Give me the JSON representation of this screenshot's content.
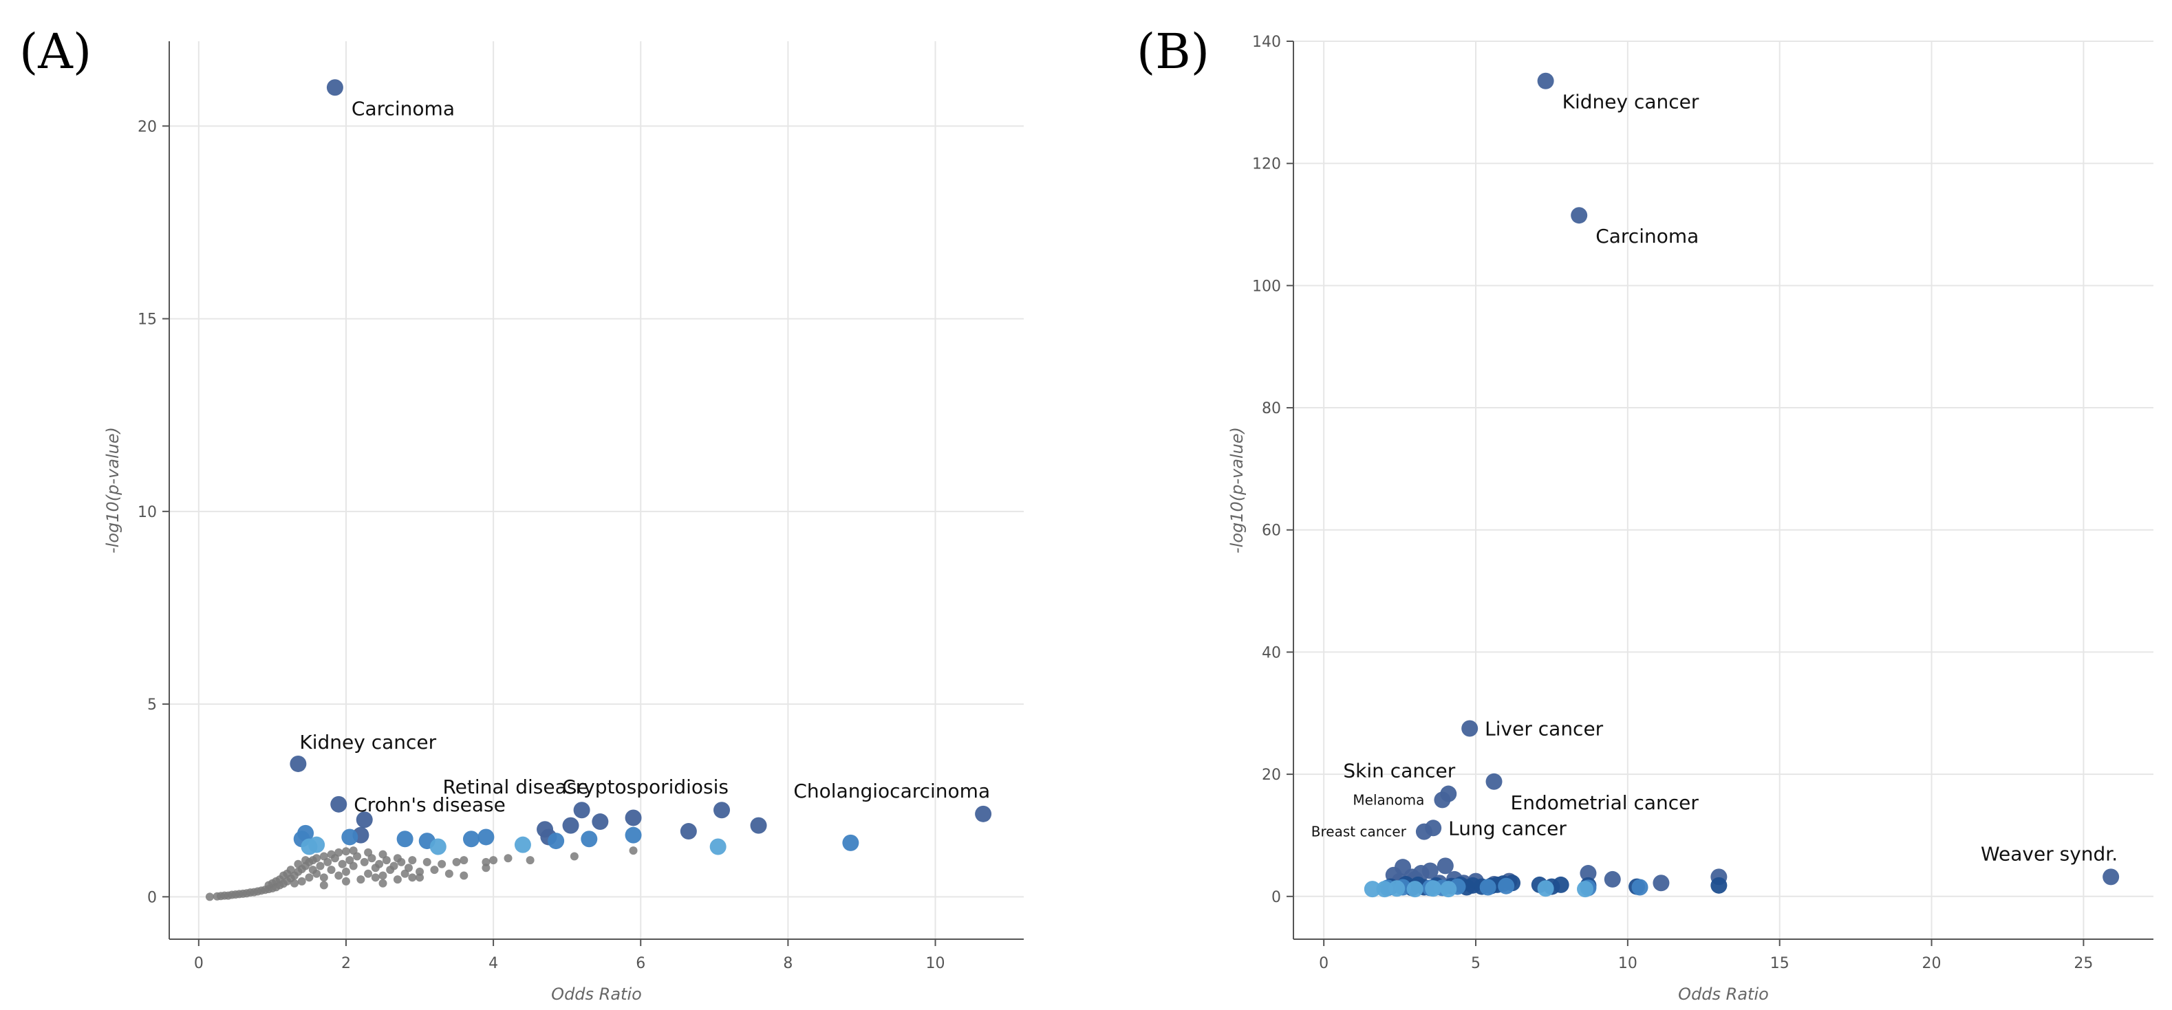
{
  "colors": {
    "gray_point": "#7a7a7a",
    "dark_blue": "#45639a",
    "mid_blue": "#3f82c2",
    "light_blue": "#5aa6d8",
    "navy": "#1f4f8f",
    "grid": "#e6e6e6",
    "axis": "#555555"
  },
  "chart_data": [
    {
      "type": "scatter",
      "panel": "(A)",
      "xlabel": "Odds Ratio",
      "ylabel": "-log10(p-value)",
      "xlim": [
        -0.4,
        11.2
      ],
      "ylim": [
        -1.1,
        22.2
      ],
      "xticks": [
        0,
        2,
        4,
        6,
        8,
        10
      ],
      "yticks": [
        0,
        5,
        10,
        15,
        20
      ],
      "grid": true,
      "labeled_points": [
        {
          "label": "Carcinoma",
          "x": 1.85,
          "y": 21.0,
          "color": "dark_blue",
          "label_pos": "below-right"
        },
        {
          "label": "Kidney cancer",
          "x": 1.35,
          "y": 3.45,
          "color": "dark_blue",
          "label_pos": "above-right"
        },
        {
          "label": "Crohn's disease",
          "x": 1.9,
          "y": 2.4,
          "color": "dark_blue",
          "label_pos": "right"
        },
        {
          "label": "Retinal disease",
          "x": 5.2,
          "y": 2.25,
          "color": "dark_blue",
          "label_pos": "above-left"
        },
        {
          "label": "Cryptosporidiosis",
          "x": 7.1,
          "y": 2.25,
          "color": "dark_blue",
          "label_pos": "above-left"
        },
        {
          "label": "Cholangiocarcinoma",
          "x": 10.65,
          "y": 2.15,
          "color": "dark_blue",
          "label_pos": "above-left"
        }
      ],
      "series": [
        {
          "color": "dark_blue",
          "points": [
            [
              2.25,
              2.0
            ],
            [
              4.7,
              1.75
            ],
            [
              5.05,
              1.85
            ],
            [
              5.45,
              1.95
            ],
            [
              5.9,
              2.05
            ],
            [
              6.65,
              1.7
            ],
            [
              7.6,
              1.85
            ],
            [
              4.75,
              1.55
            ],
            [
              2.2,
              1.6
            ]
          ]
        },
        {
          "color": "mid_blue",
          "points": [
            [
              1.45,
              1.65
            ],
            [
              2.05,
              1.55
            ],
            [
              2.8,
              1.5
            ],
            [
              3.1,
              1.45
            ],
            [
              3.7,
              1.5
            ],
            [
              3.9,
              1.55
            ],
            [
              4.85,
              1.45
            ],
            [
              5.3,
              1.5
            ],
            [
              5.9,
              1.6
            ],
            [
              8.85,
              1.4
            ],
            [
              1.4,
              1.5
            ]
          ]
        },
        {
          "color": "light_blue",
          "points": [
            [
              1.6,
              1.35
            ],
            [
              3.25,
              1.3
            ],
            [
              4.4,
              1.35
            ],
            [
              7.05,
              1.3
            ],
            [
              1.5,
              1.3
            ]
          ]
        },
        {
          "color": "gray_point",
          "points": [
            [
              0.15,
              0.0
            ],
            [
              0.25,
              0.01
            ],
            [
              0.3,
              0.02
            ],
            [
              0.35,
              0.03
            ],
            [
              0.4,
              0.03
            ],
            [
              0.45,
              0.05
            ],
            [
              0.5,
              0.06
            ],
            [
              0.55,
              0.07
            ],
            [
              0.6,
              0.08
            ],
            [
              0.65,
              0.09
            ],
            [
              0.7,
              0.11
            ],
            [
              0.75,
              0.12
            ],
            [
              0.8,
              0.14
            ],
            [
              0.85,
              0.16
            ],
            [
              0.9,
              0.18
            ],
            [
              0.95,
              0.2
            ],
            [
              1.0,
              0.22
            ],
            [
              1.05,
              0.25
            ],
            [
              1.1,
              0.3
            ],
            [
              1.15,
              0.34
            ],
            [
              1.2,
              0.4
            ],
            [
              1.25,
              0.48
            ],
            [
              1.3,
              0.55
            ],
            [
              1.35,
              0.65
            ],
            [
              1.4,
              0.72
            ],
            [
              1.45,
              0.8
            ],
            [
              1.5,
              0.9
            ],
            [
              1.55,
              0.95
            ],
            [
              1.6,
              1.0
            ],
            [
              1.7,
              1.05
            ],
            [
              1.8,
              1.1
            ],
            [
              1.9,
              1.15
            ],
            [
              2.0,
              1.18
            ],
            [
              2.1,
              1.2
            ],
            [
              2.3,
              1.15
            ],
            [
              2.5,
              1.1
            ],
            [
              2.7,
              1.0
            ],
            [
              2.9,
              0.95
            ],
            [
              3.1,
              0.9
            ],
            [
              3.3,
              0.85
            ],
            [
              3.6,
              0.95
            ],
            [
              3.9,
              0.9
            ],
            [
              4.2,
              1.0
            ],
            [
              4.5,
              0.95
            ],
            [
              5.1,
              1.05
            ],
            [
              5.9,
              1.2
            ],
            [
              1.1,
              0.45
            ],
            [
              1.2,
              0.6
            ],
            [
              1.3,
              0.35
            ],
            [
              1.4,
              0.4
            ],
            [
              1.5,
              0.5
            ],
            [
              1.6,
              0.6
            ],
            [
              1.7,
              0.5
            ],
            [
              1.8,
              0.7
            ],
            [
              1.9,
              0.55
            ],
            [
              2.0,
              0.65
            ],
            [
              2.1,
              0.8
            ],
            [
              2.2,
              0.45
            ],
            [
              2.3,
              0.6
            ],
            [
              2.4,
              0.75
            ],
            [
              2.5,
              0.55
            ],
            [
              2.6,
              0.7
            ],
            [
              2.7,
              0.45
            ],
            [
              2.8,
              0.6
            ],
            [
              3.0,
              0.5
            ],
            [
              3.2,
              0.7
            ],
            [
              3.4,
              0.6
            ],
            [
              3.6,
              0.55
            ],
            [
              3.9,
              0.75
            ],
            [
              2.5,
              0.35
            ],
            [
              2.9,
              0.5
            ],
            [
              3.5,
              0.9
            ],
            [
              0.95,
              0.3
            ],
            [
              1.0,
              0.35
            ],
            [
              1.05,
              0.4
            ],
            [
              1.15,
              0.55
            ],
            [
              1.25,
              0.7
            ],
            [
              1.35,
              0.85
            ],
            [
              1.45,
              0.95
            ],
            [
              1.55,
              0.7
            ],
            [
              1.65,
              0.8
            ],
            [
              1.75,
              0.9
            ],
            [
              1.85,
              1.0
            ],
            [
              1.95,
              0.85
            ],
            [
              2.05,
              0.95
            ],
            [
              2.15,
              1.05
            ],
            [
              2.25,
              0.9
            ],
            [
              2.35,
              1.0
            ],
            [
              2.45,
              0.85
            ],
            [
              2.55,
              0.95
            ],
            [
              2.65,
              0.8
            ],
            [
              2.75,
              0.9
            ],
            [
              2.85,
              0.75
            ],
            [
              1.7,
              0.3
            ],
            [
              2.0,
              0.4
            ],
            [
              2.4,
              0.5
            ],
            [
              3.0,
              0.65
            ],
            [
              4.0,
              0.95
            ]
          ]
        }
      ]
    },
    {
      "type": "scatter",
      "panel": "(B)",
      "xlabel": "Odds Ratio",
      "ylabel": "-log10(p-value)",
      "xlim": [
        -1.0,
        27.3
      ],
      "ylim": [
        -7.0,
        140
      ],
      "xticks": [
        0,
        5,
        10,
        15,
        20,
        25
      ],
      "yticks": [
        0,
        20,
        40,
        60,
        80,
        100,
        120,
        140
      ],
      "grid": true,
      "labeled_points": [
        {
          "label": "Kidney cancer",
          "x": 7.3,
          "y": 133.5,
          "color": "dark_blue",
          "label_pos": "below-right",
          "size": "large"
        },
        {
          "label": "Carcinoma",
          "x": 8.4,
          "y": 111.5,
          "color": "dark_blue",
          "label_pos": "below-right",
          "size": "large"
        },
        {
          "label": "Liver cancer",
          "x": 4.8,
          "y": 27.5,
          "color": "dark_blue",
          "label_pos": "right",
          "size": "large"
        },
        {
          "label": "Endometrial cancer",
          "x": 5.6,
          "y": 18.8,
          "color": "dark_blue",
          "label_pos": "below-right",
          "size": "large"
        },
        {
          "label": "Skin cancer",
          "x": 4.1,
          "y": 16.8,
          "color": "dark_blue",
          "label_pos": "above-left",
          "size": "large"
        },
        {
          "label": "Melanoma",
          "x": 3.9,
          "y": 15.8,
          "color": "dark_blue",
          "label_pos": "left",
          "size": "small"
        },
        {
          "label": "Lung cancer",
          "x": 3.6,
          "y": 11.2,
          "color": "dark_blue",
          "label_pos": "right",
          "size": "large"
        },
        {
          "label": "Breast cancer",
          "x": 3.3,
          "y": 10.6,
          "color": "dark_blue",
          "label_pos": "left",
          "size": "small"
        },
        {
          "label": "Weaver syndr.",
          "x": 25.9,
          "y": 3.2,
          "color": "dark_blue",
          "label_pos": "above-left",
          "size": "large"
        }
      ],
      "series": [
        {
          "color": "dark_blue",
          "points": [
            [
              2.3,
              3.5
            ],
            [
              2.6,
              4.8
            ],
            [
              2.9,
              3.2
            ],
            [
              3.2,
              3.8
            ],
            [
              3.5,
              4.2
            ],
            [
              4.0,
              5.0
            ],
            [
              4.3,
              2.8
            ],
            [
              4.6,
              2.2
            ],
            [
              5.0,
              2.5
            ],
            [
              5.6,
              2.0
            ],
            [
              6.1,
              2.5
            ],
            [
              8.7,
              3.8
            ],
            [
              9.5,
              2.8
            ],
            [
              11.1,
              2.2
            ],
            [
              13.0,
              3.2
            ],
            [
              2.5,
              2.5
            ],
            [
              3.0,
              2.8
            ],
            [
              3.8,
              2.2
            ]
          ]
        },
        {
          "color": "navy",
          "points": [
            [
              2.2,
              1.6
            ],
            [
              2.7,
              2.0
            ],
            [
              3.1,
              1.9
            ],
            [
              3.3,
              1.5
            ],
            [
              3.7,
              1.8
            ],
            [
              4.2,
              1.7
            ],
            [
              4.5,
              1.9
            ],
            [
              4.9,
              1.8
            ],
            [
              5.2,
              1.6
            ],
            [
              5.5,
              1.7
            ],
            [
              5.9,
              2.1
            ],
            [
              6.2,
              2.2
            ],
            [
              7.1,
              1.9
            ],
            [
              7.5,
              1.6
            ],
            [
              7.8,
              1.9
            ],
            [
              8.7,
              1.8
            ],
            [
              10.3,
              1.6
            ],
            [
              13.0,
              1.8
            ],
            [
              2.9,
              1.4
            ],
            [
              4.7,
              1.5
            ],
            [
              5.7,
              1.9
            ]
          ]
        },
        {
          "color": "mid_blue",
          "points": [
            [
              2.1,
              1.4
            ],
            [
              2.6,
              1.5
            ],
            [
              3.5,
              1.4
            ],
            [
              4.4,
              1.6
            ],
            [
              5.4,
              1.5
            ],
            [
              6.0,
              1.7
            ],
            [
              8.7,
              1.4
            ],
            [
              10.4,
              1.5
            ],
            [
              3.9,
              1.4
            ]
          ]
        },
        {
          "color": "light_blue",
          "points": [
            [
              1.6,
              1.2
            ],
            [
              2.0,
              1.2
            ],
            [
              2.4,
              1.3
            ],
            [
              3.0,
              1.2
            ],
            [
              3.6,
              1.3
            ],
            [
              4.1,
              1.2
            ],
            [
              7.3,
              1.3
            ],
            [
              8.6,
              1.2
            ]
          ]
        }
      ]
    }
  ]
}
